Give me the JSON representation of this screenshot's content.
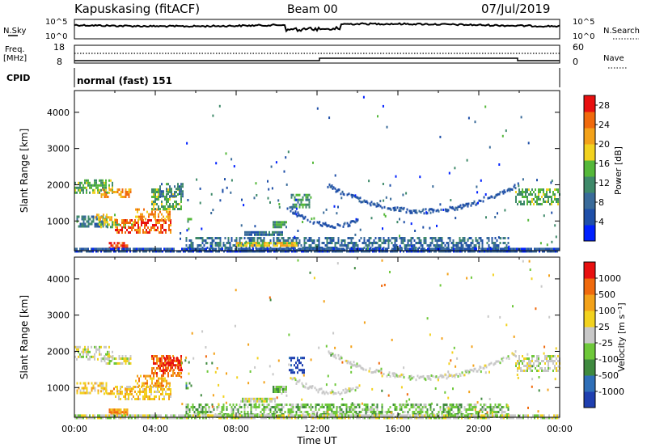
{
  "header": {
    "station": "Kapuskasing (fitACF)",
    "beam": "Beam 00",
    "date": "07/Jul/2019"
  },
  "noise_panel": {
    "left_label": "N.Sky",
    "right_label": "N.Search",
    "ticks": [
      "10^5",
      "10^0"
    ]
  },
  "freq_panel": {
    "left_label": "Freq.",
    "left_unit": "[MHz]",
    "left_ticks": [
      "18",
      "8"
    ],
    "right_label": "Nave",
    "right_ticks": [
      "60",
      "0"
    ]
  },
  "cpid_panel": {
    "label": "CPID",
    "program": "normal (fast) 151"
  },
  "colors": {
    "power": [
      "#0020ff",
      "#1f4fa8",
      "#3a6b9a",
      "#3f8a6a",
      "#55b83a",
      "#f2d21f",
      "#f3a21a",
      "#f06a0d",
      "#e81010"
    ],
    "velocity": [
      "#1f3fb0",
      "#2f6fb8",
      "#3f8a3f",
      "#6ec83a",
      "#c8c8c8",
      "#f2d21f",
      "#f3a21a",
      "#f06a0d",
      "#e81010"
    ]
  },
  "chart_data": [
    {
      "type": "heatmap",
      "name": "power",
      "ylabel": "Slant Range [km]",
      "ylim": [
        180,
        4600
      ],
      "yticks": [
        "1000",
        "2000",
        "3000",
        "4000"
      ],
      "colorbar": {
        "label": "Power [dB]",
        "ticks": [
          "4",
          "8",
          "12",
          "16",
          "20",
          "24",
          "28"
        ],
        "range": [
          0,
          30
        ]
      },
      "patches": [
        {
          "t0": 0.0,
          "t1": 1.9,
          "r0": 1750,
          "r1": 2150,
          "v": 14
        },
        {
          "t0": 1.3,
          "t1": 2.8,
          "r0": 1650,
          "r1": 1900,
          "v": 22
        },
        {
          "t0": 0.1,
          "t1": 1.6,
          "r0": 850,
          "r1": 1150,
          "v": 10
        },
        {
          "t0": 1.2,
          "t1": 2.9,
          "r0": 800,
          "r1": 1000,
          "v": 16
        },
        {
          "t0": 1.0,
          "t1": 2.2,
          "r0": 1000,
          "r1": 1200,
          "v": 20
        },
        {
          "t0": 2.0,
          "t1": 4.8,
          "r0": 650,
          "r1": 1050,
          "v": 26
        },
        {
          "t0": 3.0,
          "t1": 4.7,
          "r0": 1050,
          "r1": 1350,
          "v": 22
        },
        {
          "t0": 3.8,
          "t1": 5.3,
          "r0": 1300,
          "r1": 1900,
          "v": 14
        },
        {
          "t0": 4.2,
          "t1": 5.4,
          "r0": 1700,
          "r1": 2050,
          "v": 10
        },
        {
          "t0": 1.7,
          "t1": 2.6,
          "r0": 260,
          "r1": 420,
          "v": 28
        },
        {
          "t0": 5.5,
          "t1": 5.8,
          "r0": 950,
          "r1": 1150,
          "v": 12
        },
        {
          "t0": 8.4,
          "t1": 10.3,
          "r0": 600,
          "r1": 720,
          "v": 8
        },
        {
          "t0": 9.8,
          "t1": 10.5,
          "r0": 850,
          "r1": 1000,
          "v": 12
        },
        {
          "t0": 10.7,
          "t1": 11.6,
          "r0": 1400,
          "r1": 1750,
          "v": 12
        },
        {
          "t0": 5.5,
          "t1": 21.5,
          "r0": 220,
          "r1": 560,
          "v": 8
        },
        {
          "t0": 8.0,
          "t1": 11.0,
          "r0": 300,
          "r1": 420,
          "v": 18
        },
        {
          "t0": 21.8,
          "t1": 24.0,
          "r0": 1450,
          "r1": 1900,
          "v": 14
        },
        {
          "t0": 0.0,
          "t1": 24.0,
          "r0": 190,
          "r1": 260,
          "v": 6
        }
      ],
      "arcs": [
        {
          "t0": 12.5,
          "t1": 21.8,
          "tc": 17.2,
          "rmin": 1300,
          "rmax": 2000,
          "v": 6
        },
        {
          "t0": 10.5,
          "t1": 14.0,
          "tc": 12.8,
          "rmin": 900,
          "rmax": 1200,
          "v": 5
        }
      ]
    },
    {
      "type": "heatmap",
      "name": "velocity",
      "ylabel": "Slant Range [km]",
      "xlabel": "Time UT",
      "ylim": [
        180,
        4600
      ],
      "yticks": [
        "1000",
        "2000",
        "3000",
        "4000"
      ],
      "xticks": [
        "00:00",
        "04:00",
        "08:00",
        "12:00",
        "16:00",
        "20:00",
        "00:00"
      ],
      "xlim": [
        0,
        24
      ],
      "colorbar": {
        "label": "Velocity [m s⁻¹]",
        "ticks": [
          "1000",
          "500",
          "100",
          "25",
          "-25",
          "-100",
          "-500",
          "-1000"
        ]
      },
      "patches": [
        {
          "t0": 0.0,
          "t1": 1.9,
          "r0": 1750,
          "r1": 2150,
          "v": 4
        },
        {
          "t0": 1.3,
          "t1": 2.8,
          "r0": 1650,
          "r1": 1900,
          "v": 4
        },
        {
          "t0": 0.1,
          "t1": 1.6,
          "r0": 850,
          "r1": 1150,
          "v": 5
        },
        {
          "t0": 1.2,
          "t1": 2.9,
          "r0": 800,
          "r1": 1000,
          "v": 6
        },
        {
          "t0": 2.0,
          "t1": 4.8,
          "r0": 650,
          "r1": 1050,
          "v": 5
        },
        {
          "t0": 3.0,
          "t1": 4.7,
          "r0": 1050,
          "r1": 1350,
          "v": 6
        },
        {
          "t0": 3.8,
          "t1": 5.3,
          "r0": 1300,
          "r1": 1900,
          "v": 7
        },
        {
          "t0": 4.4,
          "t1": 5.3,
          "r0": 1500,
          "r1": 1850,
          "v": 8
        },
        {
          "t0": 1.7,
          "t1": 2.6,
          "r0": 260,
          "r1": 420,
          "v": 6
        },
        {
          "t0": 5.5,
          "t1": 5.8,
          "r0": 950,
          "r1": 1150,
          "v": 2
        },
        {
          "t0": 9.8,
          "t1": 10.5,
          "r0": 900,
          "r1": 1050,
          "v": 3
        },
        {
          "t0": 10.6,
          "t1": 11.4,
          "r0": 1400,
          "r1": 1850,
          "v": 0
        },
        {
          "t0": 8.2,
          "t1": 10.0,
          "r0": 620,
          "r1": 720,
          "v": 4
        },
        {
          "t0": 5.5,
          "t1": 21.5,
          "r0": 220,
          "r1": 560,
          "v": 3
        },
        {
          "t0": 21.8,
          "t1": 24.0,
          "r0": 1450,
          "r1": 1900,
          "v": 4
        },
        {
          "t0": 0.0,
          "t1": 24.0,
          "r0": 190,
          "r1": 260,
          "v": 4
        }
      ],
      "arcs": [
        {
          "t0": 12.5,
          "t1": 21.8,
          "tc": 17.2,
          "rmin": 1300,
          "rmax": 2000,
          "v": 4
        },
        {
          "t0": 10.5,
          "t1": 14.0,
          "tc": 12.8,
          "rmin": 900,
          "rmax": 1200,
          "v": 4
        }
      ]
    }
  ]
}
